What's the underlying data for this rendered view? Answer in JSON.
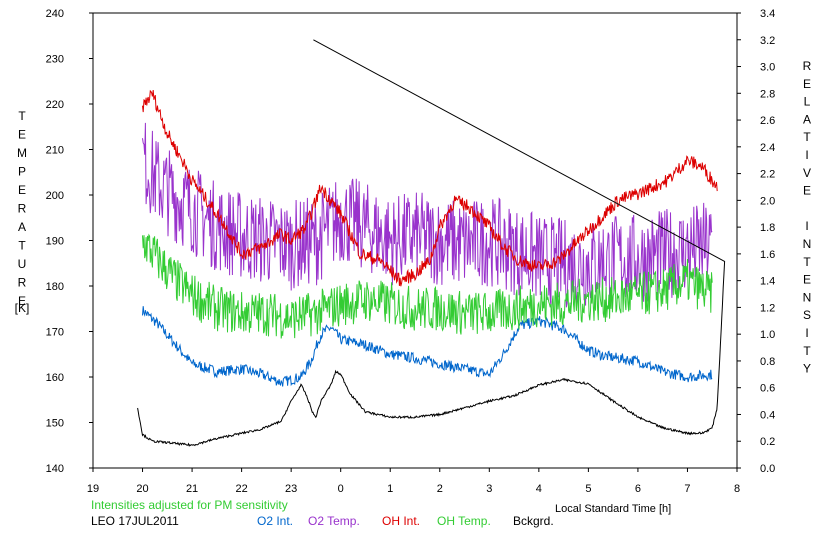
{
  "chart_data": {
    "type": "line",
    "x_ticks": [
      "19",
      "20",
      "21",
      "22",
      "23",
      "0",
      "1",
      "2",
      "3",
      "4",
      "5",
      "6",
      "7",
      "8"
    ],
    "xlim": [
      19,
      32
    ],
    "xlabel": "Local Standard Time [h]",
    "ylabel_left": "TEMPERATURE",
    "ylabel_left_unit": "[K]",
    "ylim_left": [
      140,
      240
    ],
    "yticks_left": [
      "140",
      "150",
      "160",
      "170",
      "180",
      "190",
      "200",
      "210",
      "220",
      "230",
      "240"
    ],
    "ylabel_right": "RELATIVE INTENSITY",
    "ylim_right": [
      0.0,
      3.4
    ],
    "yticks_right": [
      "0.0",
      "0.2",
      "0.4",
      "0.6",
      "0.8",
      "1.0",
      "1.2",
      "1.4",
      "1.6",
      "1.8",
      "2.0",
      "2.2",
      "2.4",
      "2.6",
      "2.8",
      "3.0",
      "3.2",
      "3.4"
    ],
    "note": "Intensities adjusted for PM sensitivity",
    "station_date": "LEO 17JUL2011",
    "series": [
      {
        "name": "O2 Int.",
        "color": "#0066cc",
        "axis": "right",
        "noise": 0.04,
        "x": [
          20.0,
          20.3,
          20.6,
          21.0,
          21.5,
          22.0,
          22.4,
          22.8,
          23.2,
          23.4,
          23.6,
          23.8,
          24.0,
          24.5,
          25.0,
          25.5,
          26.0,
          26.5,
          27.0,
          27.3,
          27.6,
          28.0,
          28.5,
          29.0,
          29.3,
          29.6,
          30.0,
          30.5,
          31.0,
          31.5
        ],
        "y": [
          1.18,
          1.08,
          0.95,
          0.78,
          0.72,
          0.74,
          0.7,
          0.64,
          0.68,
          0.8,
          1.0,
          1.05,
          0.96,
          0.92,
          0.85,
          0.82,
          0.78,
          0.74,
          0.7,
          0.86,
          1.06,
          1.1,
          1.04,
          0.88,
          0.84,
          0.82,
          0.8,
          0.72,
          0.68,
          0.7
        ]
      },
      {
        "name": "O2 Temp.",
        "color": "#9933cc",
        "axis": "left",
        "noise": 10,
        "x": [
          20.0,
          20.3,
          20.6,
          21.0,
          21.5,
          22.0,
          22.5,
          23.0,
          23.5,
          24.0,
          24.5,
          25.0,
          25.5,
          26.0,
          26.5,
          27.0,
          27.5,
          28.0,
          28.5,
          29.0,
          29.5,
          30.0,
          30.5,
          31.0,
          31.5
        ],
        "y": [
          208,
          203,
          200,
          197,
          193,
          191,
          190,
          189,
          190,
          195,
          193,
          190,
          191,
          190,
          189,
          190,
          188,
          186,
          185,
          185,
          186,
          186,
          187,
          188,
          189
        ]
      },
      {
        "name": "OH Int.",
        "color": "#dd0000",
        "axis": "right",
        "noise": 0.05,
        "x": [
          20.0,
          20.2,
          20.5,
          20.8,
          21.0,
          21.3,
          21.6,
          22.0,
          22.4,
          22.8,
          23.0,
          23.3,
          23.6,
          24.0,
          24.4,
          24.8,
          25.2,
          25.5,
          25.8,
          26.0,
          26.3,
          26.6,
          27.0,
          27.3,
          27.6,
          28.0,
          28.4,
          28.8,
          29.2,
          29.6,
          30.0,
          30.3,
          30.6,
          31.0,
          31.3,
          31.6
        ],
        "y": [
          2.7,
          2.8,
          2.5,
          2.3,
          2.15,
          2.0,
          1.85,
          1.6,
          1.65,
          1.75,
          1.7,
          1.8,
          2.1,
          1.9,
          1.6,
          1.55,
          1.4,
          1.45,
          1.55,
          1.8,
          2.0,
          1.95,
          1.8,
          1.65,
          1.55,
          1.5,
          1.55,
          1.7,
          1.85,
          2.0,
          2.05,
          2.1,
          2.15,
          2.3,
          2.25,
          2.1
        ]
      },
      {
        "name": "OH Temp.",
        "color": "#33cc33",
        "axis": "left",
        "noise": 5,
        "x": [
          20.0,
          20.3,
          20.6,
          21.0,
          21.5,
          22.0,
          22.5,
          23.0,
          23.5,
          24.0,
          24.5,
          25.0,
          25.5,
          26.0,
          26.5,
          27.0,
          27.5,
          28.0,
          28.5,
          29.0,
          29.5,
          30.0,
          30.5,
          31.0,
          31.5
        ],
        "y": [
          190,
          186,
          182,
          178,
          175,
          174,
          174,
          173,
          174,
          176,
          177,
          176,
          175,
          175,
          174,
          174,
          175,
          176,
          176,
          177,
          177,
          178,
          179,
          181,
          178
        ]
      },
      {
        "name": "Bckgrd.",
        "color": "#000000",
        "axis": "right",
        "noise": 0.008,
        "x": [
          19.9,
          20.0,
          20.2,
          20.5,
          21.0,
          21.5,
          22.0,
          22.4,
          22.8,
          23.0,
          23.2,
          23.3,
          23.45,
          23.5,
          23.6,
          23.8,
          23.9,
          24.0,
          24.2,
          24.5,
          25.0,
          25.5,
          26.0,
          26.5,
          27.0,
          27.5,
          28.0,
          28.5,
          29.0,
          29.5,
          30.0,
          30.5,
          31.0,
          31.3,
          31.5,
          31.6,
          31.75
        ],
        "y": [
          0.45,
          0.25,
          0.2,
          0.19,
          0.17,
          0.22,
          0.26,
          0.29,
          0.35,
          0.5,
          0.62,
          0.55,
          0.4,
          0.38,
          0.5,
          0.62,
          0.72,
          0.7,
          0.55,
          0.42,
          0.38,
          0.38,
          0.4,
          0.45,
          0.5,
          0.54,
          0.62,
          0.66,
          0.63,
          0.5,
          0.38,
          0.3,
          0.26,
          0.26,
          0.3,
          0.45,
          1.55
        ]
      }
    ]
  }
}
